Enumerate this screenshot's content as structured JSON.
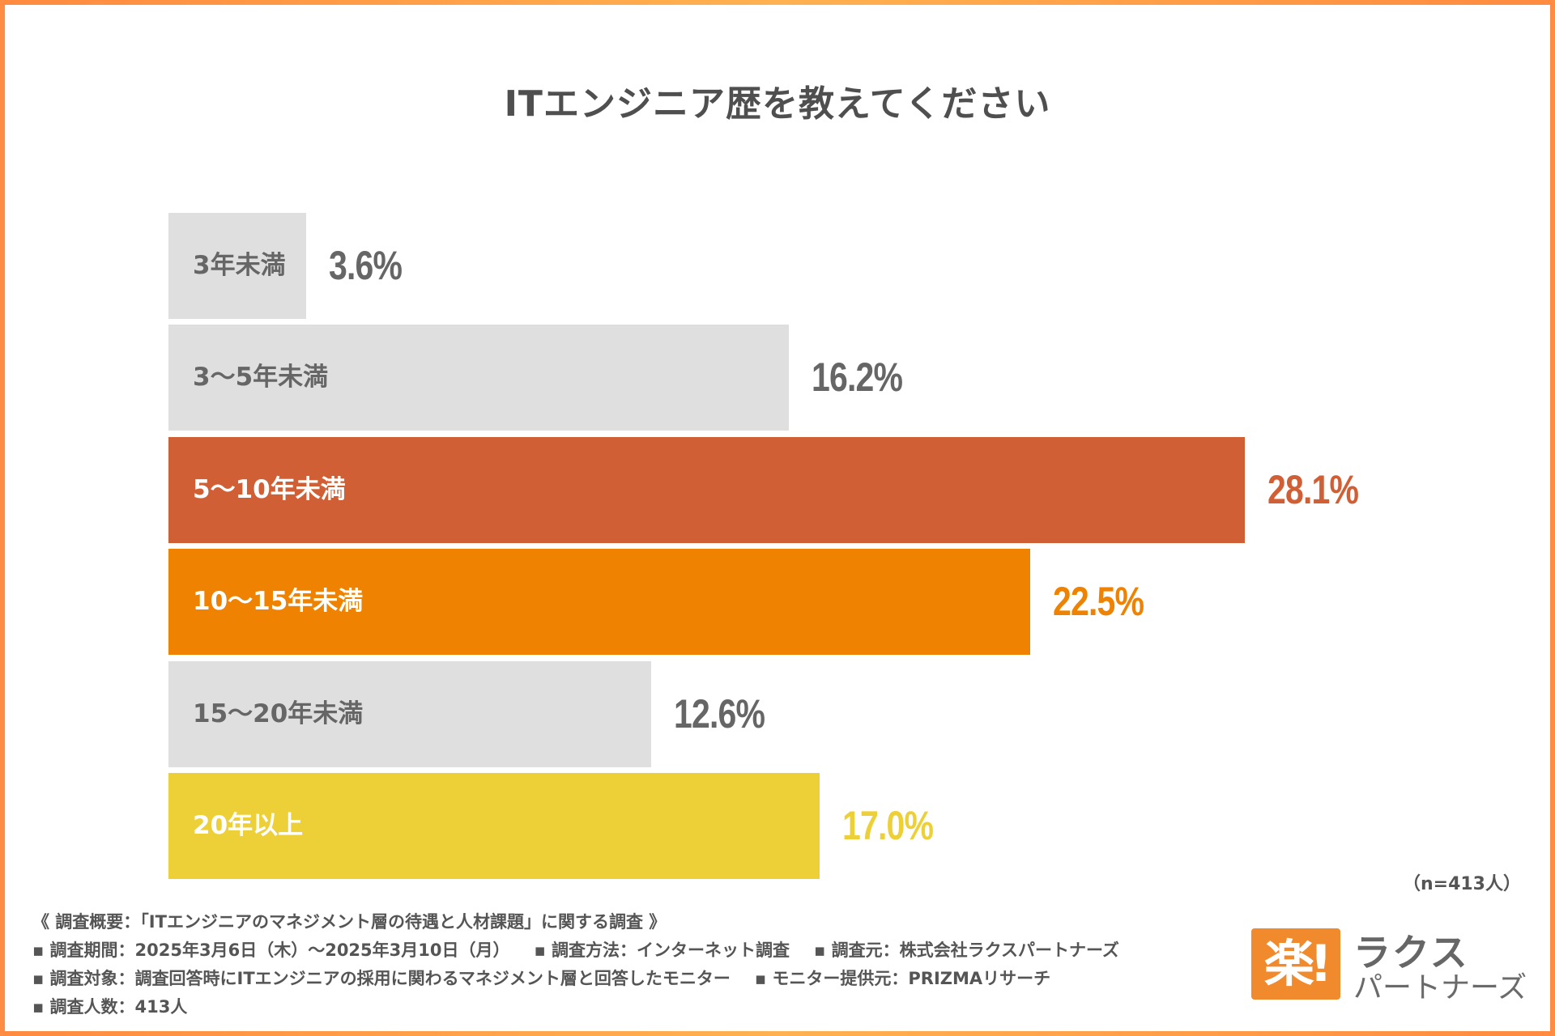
{
  "title": "ITエンジニア歴を教えてください",
  "chart_data": {
    "type": "bar",
    "orientation": "horizontal",
    "title": "ITエンジニア歴を教えてください",
    "xlabel": "",
    "ylabel": "",
    "xlim": [
      0,
      30
    ],
    "grid": false,
    "categories": [
      "3年未満",
      "3〜5年未満",
      "5〜10年未満",
      "10〜15年未満",
      "15〜20年未満",
      "20年以上"
    ],
    "values": [
      3.6,
      16.2,
      28.1,
      22.5,
      12.6,
      17.0
    ],
    "value_labels": [
      "3.6%",
      "16.2%",
      "28.1%",
      "22.5%",
      "12.6%",
      "17.0%"
    ],
    "bar_colors": [
      "#dfdfdf",
      "#dfdfdf",
      "#d05f36",
      "#ef8200",
      "#dfdfdf",
      "#edd038"
    ],
    "label_colors": [
      "#666666",
      "#666666",
      "#ffffff",
      "#ffffff",
      "#666666",
      "#ffffff"
    ],
    "value_colors": [
      "#666666",
      "#666666",
      "#d05f36",
      "#ef8200",
      "#666666",
      "#edd038"
    ],
    "unit": "%"
  },
  "sample_size": "（n=413人）",
  "footer": {
    "heading": "《 調査概要：「ITエンジニアのマネジメント層の待遇と人材課題」に関する調査 》",
    "period": "▪ 調査期間：2025年3月6日（木）〜2025年3月10日（月）",
    "method": "▪ 調査方法：インターネット調査",
    "source": "▪ 調査元：株式会社ラクスパートナーズ",
    "target": "▪ 調査対象：調査回答時にITエンジニアの採用に関わるマネジメント層と回答したモニター",
    "provider": "▪ モニター提供元：PRIZMAリサーチ",
    "count": "▪ 調査人数：413人"
  },
  "logo": {
    "mark": "楽!",
    "name_top": "ラクス",
    "name_bottom": "パートナーズ",
    "brand_color": "#f08a2c"
  },
  "border_color": "#ff8c42"
}
